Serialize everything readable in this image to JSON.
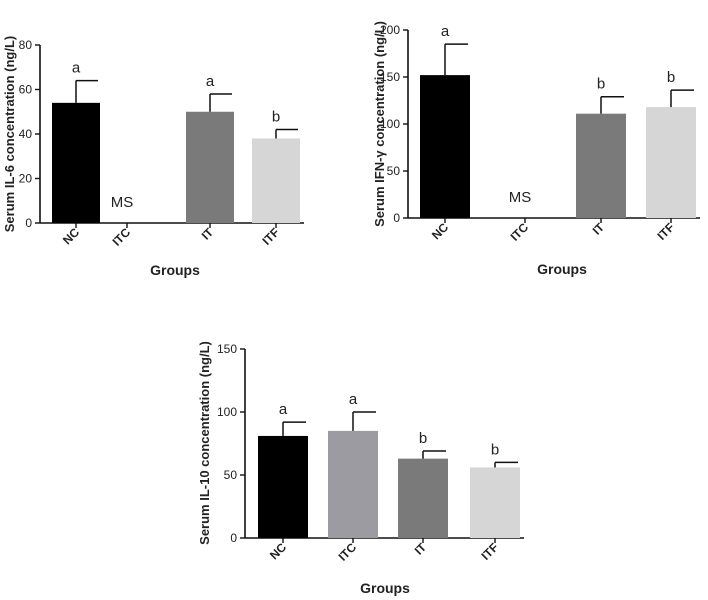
{
  "colors": {
    "NC": "#000000",
    "ITC": "#9b9ba1",
    "IT": "#7a7a7a",
    "ITF": "#d6d6d6",
    "axis": "#111111",
    "error": "#111111"
  },
  "chart_data": [
    {
      "type": "bar",
      "ylabel": "Serum IL-6 concentration (ng/L)",
      "xlabel": "Groups",
      "ylim": [
        0,
        80
      ],
      "yticks": [
        0,
        20,
        40,
        60,
        80
      ],
      "categories": [
        "NC",
        "ITC",
        "IT",
        "ITF"
      ],
      "values": [
        54,
        null,
        50,
        38
      ],
      "errors": [
        10,
        null,
        8,
        4
      ],
      "letters": [
        "a",
        "",
        "a",
        "b"
      ],
      "notes": [
        "",
        "MS",
        "",
        ""
      ]
    },
    {
      "type": "bar",
      "ylabel": "Serum IFN-γ concentration (ng/L)",
      "xlabel": "Groups",
      "ylim": [
        0,
        200
      ],
      "yticks": [
        0,
        50,
        100,
        150,
        200
      ],
      "categories": [
        "NC",
        "ITC",
        "IT",
        "ITF"
      ],
      "values": [
        152,
        null,
        111,
        118
      ],
      "errors": [
        33,
        null,
        18,
        18
      ],
      "letters": [
        "a",
        "",
        "b",
        "b"
      ],
      "notes": [
        "",
        "MS",
        "",
        ""
      ]
    },
    {
      "type": "bar",
      "ylabel": "Serum IL-10 concentration (ng/L)",
      "xlabel": "Groups",
      "ylim": [
        0,
        150
      ],
      "yticks": [
        0,
        50,
        100,
        150
      ],
      "categories": [
        "NC",
        "ITC",
        "IT",
        "ITF"
      ],
      "values": [
        81,
        85,
        63,
        56
      ],
      "errors": [
        11,
        15,
        6,
        4
      ],
      "letters": [
        "a",
        "a",
        "b",
        "b"
      ],
      "notes": [
        "",
        "",
        "",
        ""
      ]
    }
  ]
}
